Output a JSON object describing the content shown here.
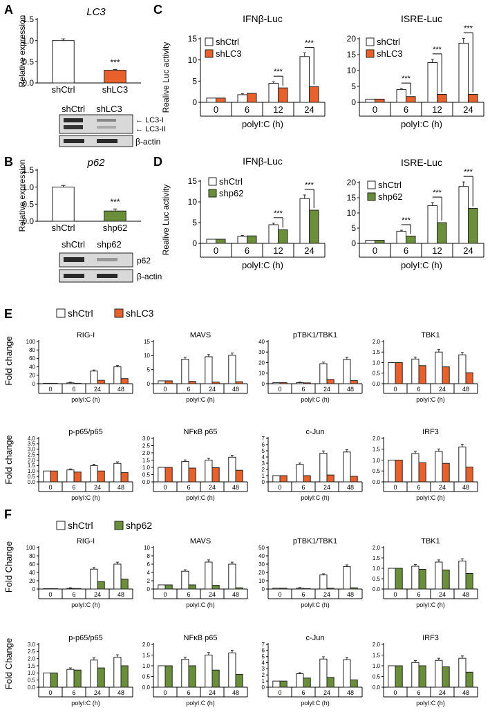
{
  "colors": {
    "ctrl": "#ffffff",
    "lc3": "#e8612c",
    "p62": "#6b8e3a",
    "axis": "#000000",
    "blot_bg": "#d9d9d9",
    "blot_band": "#2a2a2a",
    "outline": "#222222"
  },
  "panels": {
    "A": "A",
    "B": "B",
    "C": "C",
    "D": "D",
    "E": "E",
    "F": "F"
  },
  "panelA": {
    "gene": "LC3",
    "ylabel": "Relative  expression",
    "blot_labels": [
      "shCtrl",
      "shLC3"
    ],
    "band_labels": [
      "LC3-I",
      "LC3-II",
      "β-actin"
    ]
  },
  "panelB": {
    "gene": "p62",
    "ylabel": "Relative  expression",
    "blot_labels": [
      "shCtrl",
      "shp62"
    ],
    "band_labels": [
      "p62",
      "β-actin"
    ]
  },
  "legendC": {
    "ctrl": "shCtrl",
    "kd": "shLC3"
  },
  "legendD": {
    "ctrl": "shCtrl",
    "kd": "shp62"
  },
  "legendE": {
    "ctrl": "shCtrl",
    "kd": "shLC3"
  },
  "legendF": {
    "ctrl": "shCtrl",
    "kd": "shp62"
  },
  "ylabelCD": "Realive Luc activity",
  "ylabelE": "Fold change",
  "ylabelF": "Fold Change",
  "chart_data": [
    {
      "id": "A",
      "type": "bar",
      "title": "LC3",
      "ylabel": "Relative  expression",
      "categories": [
        "shCtrl",
        "shLC3"
      ],
      "values": [
        1.0,
        0.3
      ],
      "errors": [
        0.04,
        0.02
      ],
      "kinds": [
        "ctrl",
        "kd"
      ],
      "ylim": [
        0,
        1.5
      ],
      "yticks": [
        "0.0",
        "0.5",
        "1.0",
        "1.5"
      ],
      "sig": "***"
    },
    {
      "id": "B",
      "type": "bar",
      "title": "p62",
      "ylabel": "Relative  expression",
      "categories": [
        "shCtrl",
        "shp62"
      ],
      "values": [
        1.0,
        0.3
      ],
      "errors": [
        0.05,
        0.06
      ],
      "kinds": [
        "ctrl",
        "kd2"
      ],
      "ylim": [
        0,
        1.5
      ],
      "yticks": [
        "0.0",
        "0.5",
        "1.0",
        "1.5"
      ],
      "sig": "***"
    },
    {
      "id": "C1",
      "type": "bar",
      "title": "IFNβ-Luc",
      "xlabel": "polyI:C (h)",
      "categories": [
        "0",
        "6",
        "12",
        "24"
      ],
      "series": [
        {
          "name": "shCtrl",
          "values": [
            1,
            1.8,
            4.5,
            10.8
          ]
        },
        {
          "name": "shLC3",
          "values": [
            1,
            2.1,
            3.4,
            3.7
          ]
        }
      ],
      "ylim": [
        0,
        15
      ],
      "yticks": [
        "0",
        "5",
        "10",
        "15"
      ],
      "sig": [
        "",
        "",
        "***",
        "***"
      ]
    },
    {
      "id": "C2",
      "type": "bar",
      "title": "ISRE-Luc",
      "xlabel": "polyI:C (h)",
      "categories": [
        "0",
        "6",
        "12",
        "24"
      ],
      "series": [
        {
          "name": "shCtrl",
          "values": [
            1,
            4,
            12.5,
            18.6
          ]
        },
        {
          "name": "shLC3",
          "values": [
            1,
            1.8,
            2.5,
            2.5
          ]
        }
      ],
      "ylim": [
        0,
        20
      ],
      "yticks": [
        "0",
        "5",
        "10",
        "15",
        "20"
      ],
      "sig": [
        "",
        "***",
        "***",
        "***"
      ]
    },
    {
      "id": "D1",
      "type": "bar",
      "title": "IFNβ-Luc",
      "xlabel": "polyI:C (h)",
      "categories": [
        "0",
        "6",
        "12",
        "24"
      ],
      "series": [
        {
          "name": "shCtrl",
          "values": [
            1,
            1.7,
            4.5,
            10.8
          ]
        },
        {
          "name": "shp62",
          "values": [
            1,
            1.8,
            3.3,
            8.0
          ]
        }
      ],
      "ylim": [
        0,
        15
      ],
      "yticks": [
        "0",
        "5",
        "10",
        "15"
      ],
      "sig": [
        "",
        "",
        "***",
        "***"
      ]
    },
    {
      "id": "D2",
      "type": "bar",
      "title": "ISRE-Luc",
      "xlabel": "polyI:C (h)",
      "categories": [
        "0",
        "6",
        "12",
        "24"
      ],
      "series": [
        {
          "name": "shCtrl",
          "values": [
            1,
            4,
            12.4,
            18.7
          ]
        },
        {
          "name": "shp62",
          "values": [
            1,
            2.4,
            6.8,
            11.5
          ]
        }
      ],
      "ylim": [
        0,
        20
      ],
      "yticks": [
        "0",
        "5",
        "10",
        "15",
        "20"
      ],
      "sig": [
        "",
        "***",
        "***",
        "***"
      ]
    },
    {
      "id": "E1",
      "type": "bar",
      "title": "RIG-I",
      "xlabel": "polyI:C (h)",
      "categories": [
        "0",
        "6",
        "24",
        "48"
      ],
      "series": [
        {
          "name": "shCtrl",
          "values": [
            1,
            2,
            30,
            40
          ]
        },
        {
          "name": "shLC3",
          "values": [
            1,
            1,
            8,
            12
          ]
        }
      ],
      "ylim": [
        0,
        100
      ],
      "yticks": [
        "0",
        "20",
        "40",
        "60",
        "80",
        "100"
      ]
    },
    {
      "id": "E2",
      "type": "bar",
      "title": "MAVS",
      "xlabel": "polyI:C (h)",
      "categories": [
        "0",
        "6",
        "24",
        "48"
      ],
      "series": [
        {
          "name": "shCtrl",
          "values": [
            1,
            8.7,
            9.6,
            10.1
          ]
        },
        {
          "name": "shLC3",
          "values": [
            1,
            0.8,
            0.6,
            0.7
          ]
        }
      ],
      "ylim": [
        0,
        15
      ],
      "yticks": [
        "0",
        "5",
        "10",
        "15"
      ]
    },
    {
      "id": "E3",
      "type": "bar",
      "title": "pTBK1/TBK1",
      "xlabel": "polyI:C (h)",
      "categories": [
        "0",
        "6",
        "24",
        "48"
      ],
      "series": [
        {
          "name": "shCtrl",
          "values": [
            1,
            1,
            19,
            23
          ]
        },
        {
          "name": "shLC3",
          "values": [
            1,
            0.8,
            4,
            3
          ]
        }
      ],
      "ylim": [
        0,
        40
      ],
      "yticks": [
        "0",
        "10",
        "20",
        "30",
        "40"
      ]
    },
    {
      "id": "E4",
      "type": "bar",
      "title": "TBK1",
      "xlabel": "polyI:C (h)",
      "categories": [
        "0",
        "6",
        "24",
        "48"
      ],
      "series": [
        {
          "name": "shCtrl",
          "values": [
            1,
            1.17,
            1.5,
            1.37
          ]
        },
        {
          "name": "shLC3",
          "values": [
            1,
            0.86,
            0.8,
            0.52
          ]
        }
      ],
      "ylim": [
        0,
        2
      ],
      "yticks": [
        "0.0",
        "0.5",
        "1.0",
        "1.5",
        "2.0"
      ]
    },
    {
      "id": "E5",
      "type": "bar",
      "title": "p-p65/p65",
      "xlabel": "polyI:C (h)",
      "categories": [
        "0",
        "6",
        "24",
        "48"
      ],
      "series": [
        {
          "name": "shCtrl",
          "values": [
            1,
            1.1,
            1.5,
            1.7
          ]
        },
        {
          "name": "shLC3",
          "values": [
            1,
            0.9,
            1.0,
            0.85
          ]
        }
      ],
      "ylim": [
        0,
        4
      ],
      "yticks": [
        "0.0",
        "0.5",
        "1.0",
        "1.5",
        "2.0",
        "2.5",
        "3.0",
        "3.5",
        "4.0"
      ]
    },
    {
      "id": "E6",
      "type": "bar",
      "title": "NFκB p65",
      "xlabel": "polyI:C (h)",
      "categories": [
        "0",
        "6",
        "24",
        "48"
      ],
      "series": [
        {
          "name": "shCtrl",
          "values": [
            1,
            1.4,
            1.5,
            1.7
          ]
        },
        {
          "name": "shLC3",
          "values": [
            1,
            0.95,
            0.98,
            0.8
          ]
        }
      ],
      "ylim": [
        0,
        3
      ],
      "yticks": [
        "0.0",
        "0.5",
        "1.0",
        "1.5",
        "2.0",
        "2.5",
        "3.0"
      ]
    },
    {
      "id": "E7",
      "type": "bar",
      "title": "c-Jun",
      "xlabel": "polyI:C (h)",
      "categories": [
        "0",
        "6",
        "24",
        "48"
      ],
      "series": [
        {
          "name": "shCtrl",
          "values": [
            1,
            2.8,
            4.6,
            4.8
          ]
        },
        {
          "name": "shLC3",
          "values": [
            1,
            1,
            1.1,
            0.9
          ]
        }
      ],
      "ylim": [
        0,
        7
      ],
      "yticks": [
        "0",
        "1",
        "2",
        "3",
        "4",
        "5",
        "6",
        "7"
      ]
    },
    {
      "id": "E8",
      "type": "bar",
      "title": "IRF3",
      "xlabel": "polyI:C (h)",
      "categories": [
        "0",
        "6",
        "24",
        "48"
      ],
      "series": [
        {
          "name": "shCtrl",
          "values": [
            1,
            1.3,
            1.4,
            1.6
          ]
        },
        {
          "name": "shLC3",
          "values": [
            1,
            0.88,
            0.85,
            0.68
          ]
        }
      ],
      "ylim": [
        0,
        2
      ],
      "yticks": [
        "0.0",
        "0.5",
        "1.0",
        "1.5",
        "2.0"
      ]
    },
    {
      "id": "F1",
      "type": "bar",
      "title": "RIG-I",
      "xlabel": "polyI:C (h)",
      "categories": [
        "0",
        "6",
        "24",
        "48"
      ],
      "series": [
        {
          "name": "shCtrl",
          "values": [
            1,
            1.5,
            48,
            60
          ]
        },
        {
          "name": "shp62",
          "values": [
            1,
            1.2,
            18,
            24
          ]
        }
      ],
      "ylim": [
        0,
        100
      ],
      "yticks": [
        "0",
        "20",
        "40",
        "60",
        "80",
        "100"
      ]
    },
    {
      "id": "F2",
      "type": "bar",
      "title": "MAVS",
      "xlabel": "polyI:C (h)",
      "categories": [
        "0",
        "6",
        "24",
        "48"
      ],
      "series": [
        {
          "name": "shCtrl",
          "values": [
            1,
            4.3,
            6.5,
            6
          ]
        },
        {
          "name": "shp62",
          "values": [
            1,
            1,
            0.9,
            0.3
          ]
        }
      ],
      "ylim": [
        0,
        10
      ],
      "yticks": [
        "0",
        "2",
        "4",
        "6",
        "8",
        "10"
      ]
    },
    {
      "id": "F3",
      "type": "bar",
      "title": "pTBK1/TBK1",
      "xlabel": "polyI:C (h)",
      "categories": [
        "0",
        "6",
        "24",
        "48"
      ],
      "series": [
        {
          "name": "shCtrl",
          "values": [
            1,
            1,
            17,
            27
          ]
        },
        {
          "name": "shp62",
          "values": [
            1,
            0.5,
            1,
            1.5
          ]
        }
      ],
      "ylim": [
        0,
        50
      ],
      "yticks": [
        "0",
        "10",
        "20",
        "30",
        "40",
        "50"
      ]
    },
    {
      "id": "F4",
      "type": "bar",
      "title": "TBK1",
      "xlabel": "polyI:C (h)",
      "categories": [
        "0",
        "6",
        "24",
        "48"
      ],
      "series": [
        {
          "name": "shCtrl",
          "values": [
            1,
            1.1,
            1.3,
            1.35
          ]
        },
        {
          "name": "shp62",
          "values": [
            1,
            0.95,
            0.92,
            0.75
          ]
        }
      ],
      "ylim": [
        0,
        2
      ],
      "yticks": [
        "0.0",
        "0.5",
        "1.0",
        "1.5",
        "2.0"
      ]
    },
    {
      "id": "F5",
      "type": "bar",
      "title": "p-p65/p65",
      "xlabel": "polyI:C (h)",
      "categories": [
        "0",
        "6",
        "24",
        "48"
      ],
      "series": [
        {
          "name": "shCtrl",
          "values": [
            1,
            1.25,
            1.9,
            2.1
          ]
        },
        {
          "name": "shp62",
          "values": [
            1,
            1.2,
            1.35,
            1.5
          ]
        }
      ],
      "ylim": [
        0,
        3
      ],
      "yticks": [
        "0.0",
        "0.5",
        "1.0",
        "1.5",
        "2.0",
        "2.5",
        "3.0"
      ]
    },
    {
      "id": "F6",
      "type": "bar",
      "title": "NFκB p65",
      "xlabel": "polyI:C (h)",
      "categories": [
        "0",
        "6",
        "24",
        "48"
      ],
      "series": [
        {
          "name": "shCtrl",
          "values": [
            1,
            1.3,
            1.5,
            1.6
          ]
        },
        {
          "name": "shp62",
          "values": [
            1,
            1,
            0.8,
            0.6
          ]
        }
      ],
      "ylim": [
        0,
        2
      ],
      "yticks": [
        "0.0",
        "0.5",
        "1.0",
        "1.5",
        "2.0"
      ]
    },
    {
      "id": "F7",
      "type": "bar",
      "title": "c-Jun",
      "xlabel": "polyI:C (h)",
      "categories": [
        "0",
        "6",
        "24",
        "48"
      ],
      "series": [
        {
          "name": "shCtrl",
          "values": [
            1,
            2.2,
            4.6,
            4.5
          ]
        },
        {
          "name": "shp62",
          "values": [
            1,
            1.5,
            1.6,
            1.2
          ]
        }
      ],
      "ylim": [
        0,
        7
      ],
      "yticks": [
        "0",
        "1",
        "2",
        "3",
        "4",
        "5",
        "6",
        "7"
      ]
    },
    {
      "id": "F8",
      "type": "bar",
      "title": "IRF3",
      "xlabel": "polyI:C (h)",
      "categories": [
        "0",
        "6",
        "24",
        "48"
      ],
      "series": [
        {
          "name": "shCtrl",
          "values": [
            1,
            1.15,
            1.25,
            1.35
          ]
        },
        {
          "name": "shp62",
          "values": [
            1,
            1,
            0.95,
            0.7
          ]
        }
      ],
      "ylim": [
        0,
        2
      ],
      "yticks": [
        "0.0",
        "0.5",
        "1.0",
        "1.5",
        "2.0"
      ]
    }
  ]
}
